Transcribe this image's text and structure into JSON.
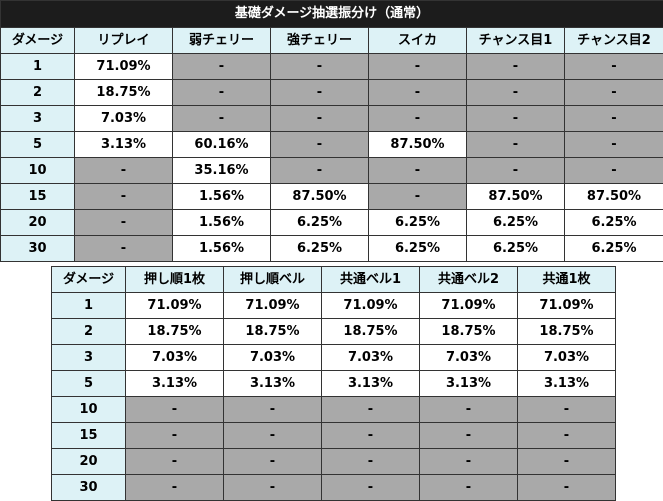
{
  "table1": {
    "title": "基礎ダメージ抽選振分け（通常）",
    "headers": [
      "ダメージ",
      "リプレイ",
      "弱チェリー",
      "強チェリー",
      "スイカ",
      "チャンス目1",
      "チャンス目2"
    ],
    "rows": [
      [
        "1",
        "71.09%",
        "-",
        "-",
        "-",
        "-",
        "-"
      ],
      [
        "2",
        "18.75%",
        "-",
        "-",
        "-",
        "-",
        "-"
      ],
      [
        "3",
        "7.03%",
        "-",
        "-",
        "-",
        "-",
        "-"
      ],
      [
        "5",
        "3.13%",
        "60.16%",
        "-",
        "87.50%",
        "-",
        "-"
      ],
      [
        "10",
        "-",
        "35.16%",
        "-",
        "-",
        "-",
        "-"
      ],
      [
        "15",
        "-",
        "1.56%",
        "87.50%",
        "-",
        "87.50%",
        "87.50%"
      ],
      [
        "20",
        "-",
        "1.56%",
        "6.25%",
        "6.25%",
        "6.25%",
        "6.25%"
      ],
      [
        "30",
        "-",
        "1.56%",
        "6.25%",
        "6.25%",
        "6.25%",
        "6.25%"
      ]
    ]
  },
  "table2": {
    "headers": [
      "ダメージ",
      "押し順1枚",
      "押し順ベル",
      "共通ベル1",
      "共通ベル2",
      "共通1枚"
    ],
    "rows": [
      [
        "1",
        "71.09%",
        "71.09%",
        "71.09%",
        "71.09%",
        "71.09%"
      ],
      [
        "2",
        "18.75%",
        "18.75%",
        "18.75%",
        "18.75%",
        "18.75%"
      ],
      [
        "3",
        "7.03%",
        "7.03%",
        "7.03%",
        "7.03%",
        "7.03%"
      ],
      [
        "5",
        "3.13%",
        "3.13%",
        "3.13%",
        "3.13%",
        "3.13%"
      ],
      [
        "10",
        "-",
        "-",
        "-",
        "-",
        "-"
      ],
      [
        "15",
        "-",
        "-",
        "-",
        "-",
        "-"
      ],
      [
        "20",
        "-",
        "-",
        "-",
        "-",
        "-"
      ],
      [
        "30",
        "-",
        "-",
        "-",
        "-",
        "-"
      ]
    ]
  },
  "colors": {
    "header_bg": "#ddf2f6",
    "title_bg": "#1c1c1c",
    "filled_cell": "#ffffff",
    "empty_cell": "#a9a9a9"
  }
}
